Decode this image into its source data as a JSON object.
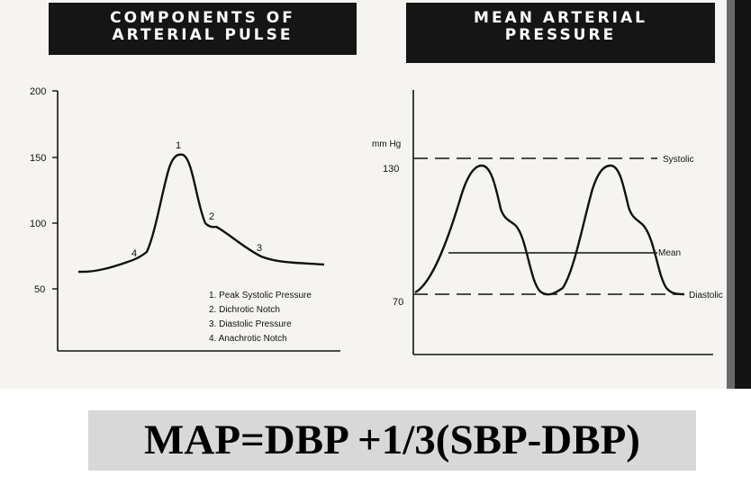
{
  "left_panel": {
    "title_line1": "COMPONENTS OF",
    "title_line2": "ARTERIAL PULSE",
    "y_ticks": [
      "200",
      "150",
      "100",
      "50"
    ],
    "markers": [
      "1",
      "2",
      "3",
      "4"
    ],
    "legend": [
      "1.  Peak Systolic Pressure",
      "2.  Dichrotic Notch",
      "3.  Diastolic Pressure",
      "4.  Anachrotic Notch"
    ]
  },
  "right_panel": {
    "title_line1": "MEAN ARTERIAL",
    "title_line2": "PRESSURE",
    "unit": "mm Hg",
    "y_ticks": [
      "130",
      "70"
    ],
    "line_labels": {
      "systolic": "Systolic",
      "mean": "Mean",
      "diastolic": "Diastolic"
    }
  },
  "formula": "MAP=DBP +1/3(SBP-DBP)",
  "colors": {
    "title_bg": "#151515",
    "title_text": "#ffffff",
    "scan_bg": "#f6f4f1",
    "formula_bg": "#d8d8d8"
  }
}
